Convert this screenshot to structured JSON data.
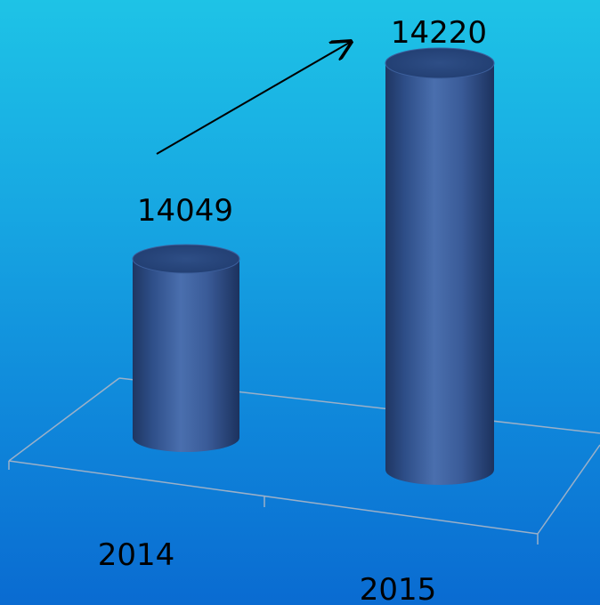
{
  "chart_data": {
    "type": "bar",
    "style": "3d-cylinder",
    "categories": [
      "2014",
      "2015"
    ],
    "series": [
      {
        "values": [
          14049,
          14220
        ],
        "color": "#3B5FA0"
      }
    ],
    "data_labels": [
      "14049",
      "14220"
    ],
    "grid": false,
    "legend": "none",
    "annotations": [
      {
        "type": "arrow",
        "from": "2014",
        "to": "2015"
      }
    ]
  }
}
